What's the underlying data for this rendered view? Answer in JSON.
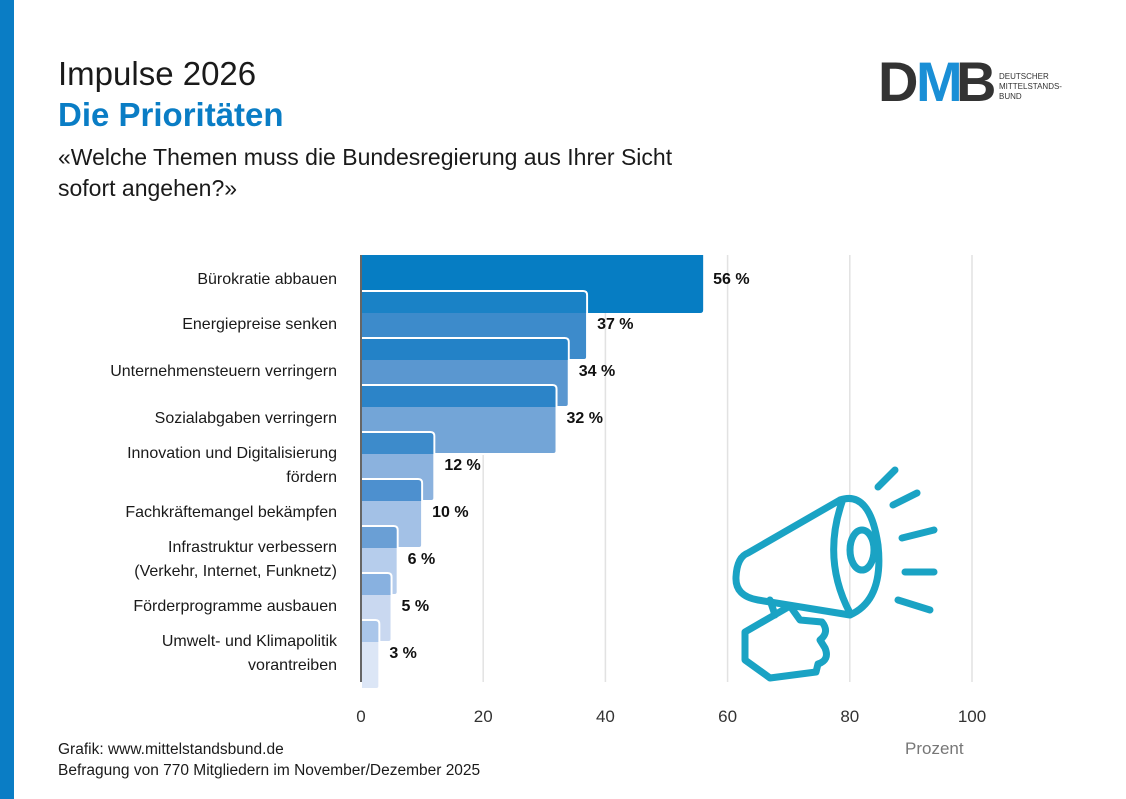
{
  "header": {
    "title": "Impulse 2026",
    "subtitle": "Die Prioritäten",
    "question": "«Welche Themen muss die Bundesregierung aus Ihrer Sicht sofort angehen?»"
  },
  "logo": {
    "letters": "DMB",
    "text_lines": [
      "DEUTSCHER",
      "MITTELSTANDS-",
      "BUND"
    ]
  },
  "footer": {
    "source": "Grafik: www.mittelstandsbund.de",
    "note": "Befragung von 770 Mitgliedern im November/Dezember 2025"
  },
  "colors": {
    "accent": "#0a7dc5",
    "icon": "#1aa3c4",
    "logo_dark": "#333333",
    "logo_blue": "#1a8fd6"
  },
  "icon": "megaphone-hand-icon",
  "chart_data": {
    "type": "bar",
    "orientation": "horizontal",
    "categories": [
      "Bürokratie abbauen",
      "Energiepreise senken",
      "Unternehmensteuern verringern",
      "Sozialabgaben verringern",
      "Innovation und Digitalisierung fördern",
      "Fachkräftemangel bekämpfen",
      "Infrastruktur verbessern (Verkehr, Internet, Funknetz)",
      "Förderprogramme ausbauen",
      "Umwelt- und Klimapolitik vorantreiben"
    ],
    "category_lines": [
      [
        "Bürokratie abbauen"
      ],
      [
        "Energiepreise senken"
      ],
      [
        "Unternehmensteuern verringern"
      ],
      [
        "Sozialabgaben verringern"
      ],
      [
        "Innovation und Digitalisierung",
        "fördern"
      ],
      [
        "Fachkräftemangel bekämpfen"
      ],
      [
        "Infrastruktur verbessern",
        "(Verkehr, Internet, Funknetz)"
      ],
      [
        "Förderprogramme ausbauen"
      ],
      [
        "Umwelt- und Klimapolitik",
        "vorantreiben"
      ]
    ],
    "values": [
      56,
      37,
      34,
      32,
      12,
      10,
      6,
      5,
      3
    ],
    "value_labels": [
      "56 %",
      "37 %",
      "34 %",
      "32 %",
      "12 %",
      "10 %",
      "6 %",
      "5 %",
      "3 %"
    ],
    "xlim": [
      0,
      100
    ],
    "xticks": [
      0,
      20,
      40,
      60,
      80,
      100
    ],
    "xlabel": "Prozent",
    "grid": true,
    "bar_colors": [
      [
        "#067dc3",
        "#067dc3"
      ],
      [
        "#1a82c6",
        "#3d8bcb"
      ],
      [
        "#2382c7",
        "#5a97d0"
      ],
      [
        "#2c84c8",
        "#73a5d7"
      ],
      [
        "#3d8bcb",
        "#8bb2de"
      ],
      [
        "#4d90cf",
        "#a3c1e6"
      ],
      [
        "#6a9fd5",
        "#b6cdec"
      ],
      [
        "#88b1e0",
        "#c9d8f0"
      ],
      [
        "#aac6ea",
        "#dce6f6"
      ]
    ]
  }
}
